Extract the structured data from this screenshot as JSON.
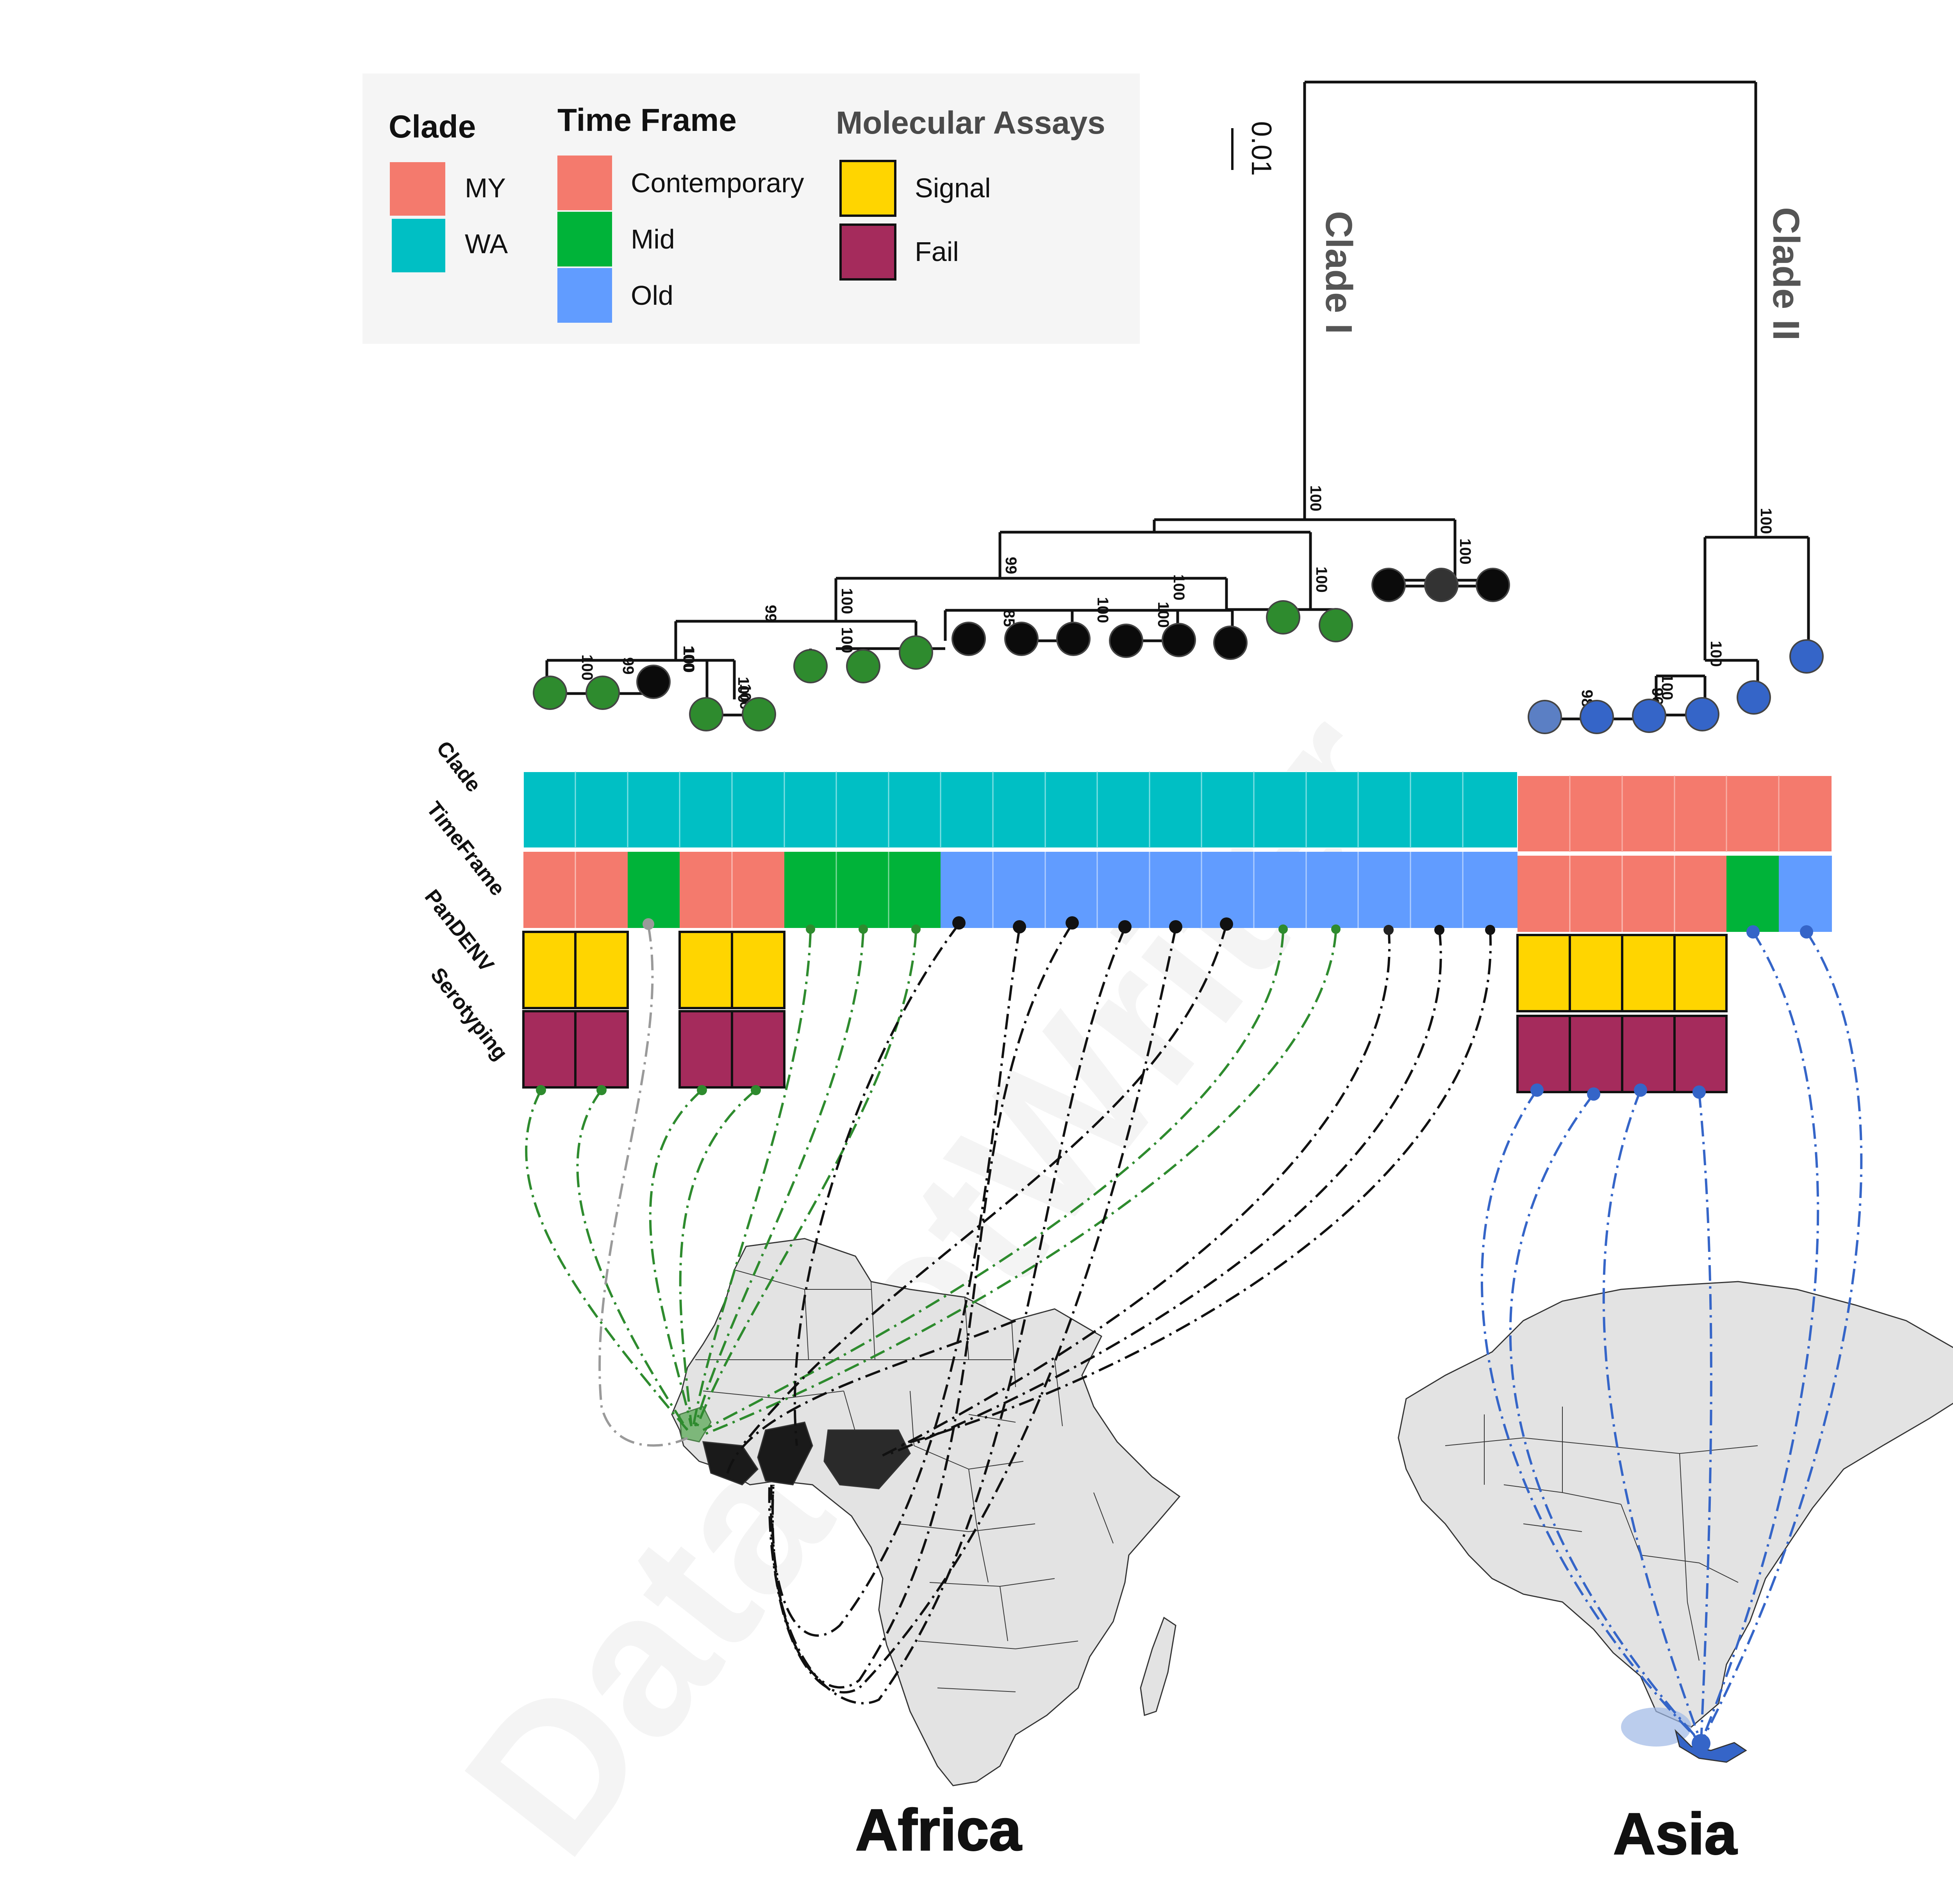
{
  "legend": {
    "clade": {
      "title": "Clade",
      "items": [
        {
          "label": "MY",
          "color": "#F47A6D"
        },
        {
          "label": "WA",
          "color": "#00BFC4"
        }
      ]
    },
    "time_frame": {
      "title": "Time Frame",
      "items": [
        {
          "label": "Contemporary",
          "color": "#F47A6D"
        },
        {
          "label": "Mid",
          "color": "#00B339"
        },
        {
          "label": "Old",
          "color": "#619CFF"
        }
      ]
    },
    "assays": {
      "title": "Molecular Assays",
      "items": [
        {
          "label": "Signal",
          "color": "#FFD500"
        },
        {
          "label": "Fail",
          "color": "#A52B5C"
        }
      ]
    }
  },
  "tree": {
    "scale_label": "0.01",
    "clade_labels": [
      "Clade I",
      "Clade II"
    ],
    "bootstrap_labels": [
      "100",
      "100",
      "99",
      "100",
      "100",
      "100",
      "100",
      "100",
      "99",
      "100",
      "99",
      "85",
      "100",
      "100",
      "100",
      "100",
      "100",
      "98",
      "96",
      "100",
      "100",
      "100"
    ]
  },
  "tracks": {
    "labels": [
      "Clade",
      "TimeFrame",
      "PanDENV",
      "Serotyping"
    ]
  },
  "regions": {
    "africa": "Africa",
    "asia": "Asia"
  },
  "watermark": "DataGotWriter",
  "colors": {
    "clade_MY": "#F47A6D",
    "clade_WA": "#00BFC4",
    "tf_contemporary": "#F47A6D",
    "tf_mid": "#00B339",
    "tf_old": "#619CFF",
    "signal": "#FFD500",
    "fail": "#A52B5C",
    "tip_green": "#2E8B2E",
    "tip_black": "#0B0B0B",
    "tip_blue": "#3565C8",
    "tip_grey": "#9A9A9A",
    "map_fill": "#E3E3E3"
  }
}
